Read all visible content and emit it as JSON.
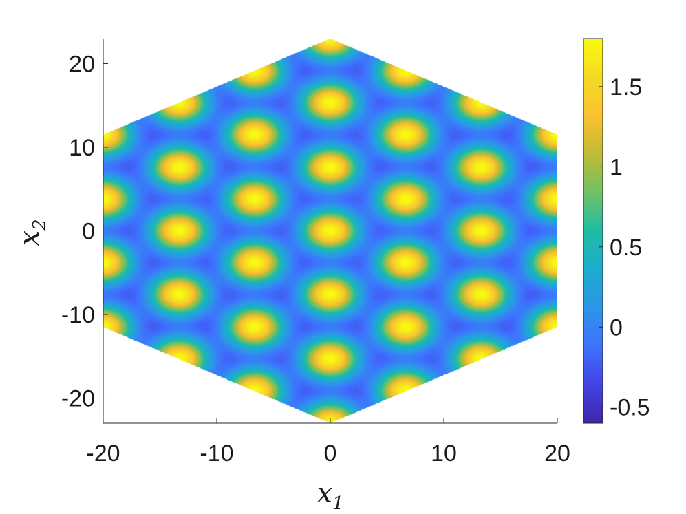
{
  "chart_data": {
    "type": "heatmap",
    "title": "",
    "xlabel": "x",
    "xlabel_sub": "1",
    "ylabel": "x",
    "ylabel_sub": "2",
    "xlim": [
      -20,
      20
    ],
    "ylim": [
      -23,
      23
    ],
    "x_ticks": [
      -20,
      -10,
      0,
      10,
      20
    ],
    "x_tick_labels": [
      "-20",
      "-10",
      "0",
      "10",
      "20"
    ],
    "y_ticks": [
      -20,
      -10,
      0,
      10,
      20
    ],
    "y_tick_labels": [
      "-20",
      "-10",
      "0",
      "10",
      "20"
    ],
    "domain_shape": "hexagon",
    "domain_vertices": [
      [
        0,
        23
      ],
      [
        20,
        11.5
      ],
      [
        20,
        -11.5
      ],
      [
        0,
        -23
      ],
      [
        -20,
        -11.5
      ],
      [
        -20,
        11.5
      ]
    ],
    "pattern": "hexagonal array of spots",
    "peak_centers": [
      [
        0,
        23
      ],
      [
        0,
        15.3
      ],
      [
        0,
        7.6
      ],
      [
        0,
        0
      ],
      [
        0,
        -7.6
      ],
      [
        0,
        -15.3
      ],
      [
        0,
        -23
      ],
      [
        6.65,
        19.1
      ],
      [
        6.65,
        11.5
      ],
      [
        6.65,
        3.8
      ],
      [
        6.65,
        -3.8
      ],
      [
        6.65,
        -11.5
      ],
      [
        6.65,
        -19.1
      ],
      [
        -6.65,
        19.1
      ],
      [
        -6.65,
        11.5
      ],
      [
        -6.65,
        3.8
      ],
      [
        -6.65,
        -3.8
      ],
      [
        -6.65,
        -11.5
      ],
      [
        -6.65,
        -19.1
      ],
      [
        13.3,
        15.3
      ],
      [
        13.3,
        7.6
      ],
      [
        13.3,
        0
      ],
      [
        13.3,
        -7.6
      ],
      [
        13.3,
        -15.3
      ],
      [
        -13.3,
        15.3
      ],
      [
        -13.3,
        7.6
      ],
      [
        -13.3,
        0
      ],
      [
        -13.3,
        -7.6
      ],
      [
        -13.3,
        -15.3
      ],
      [
        20,
        11.5
      ],
      [
        20,
        3.8
      ],
      [
        20,
        -3.8
      ],
      [
        20,
        -11.5
      ],
      [
        -20,
        11.5
      ],
      [
        -20,
        3.8
      ],
      [
        -20,
        -3.8
      ],
      [
        -20,
        -11.5
      ]
    ],
    "peak_radius": 2.6,
    "value_range": [
      -0.6,
      1.8
    ],
    "colorbar": {
      "colormap": "parula",
      "range": [
        -0.6,
        1.8
      ],
      "ticks": [
        -0.5,
        0,
        0.5,
        1,
        1.5
      ],
      "tick_labels": [
        "-0.5",
        "0",
        "0.5",
        "1",
        "1.5"
      ]
    },
    "grid": false,
    "legend": "none"
  },
  "colors": {
    "parula_stops": [
      "#3e26a8",
      "#4443e6",
      "#3e72fe",
      "#2c97e8",
      "#1caccd",
      "#20bca4",
      "#71c065",
      "#c0bb36",
      "#fbc130",
      "#f4db23",
      "#f9fb0e"
    ]
  }
}
